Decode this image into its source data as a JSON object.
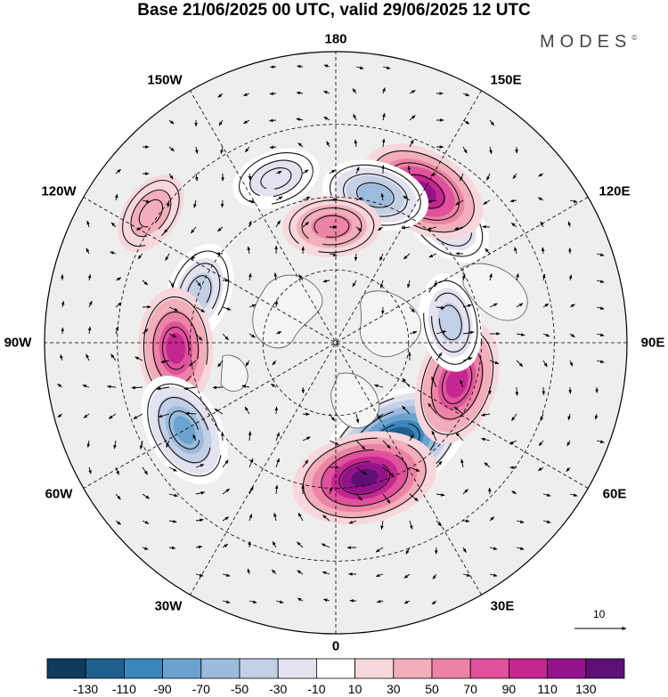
{
  "title": "Base 21/06/2025 00 UTC, valid 29/06/2025 12 UTC",
  "logo": "MODES",
  "logo_mark": "©",
  "longitude_labels": {
    "lon_180": "180",
    "lon_150e": "150E",
    "lon_120e": "120E",
    "lon_90e": "90E",
    "lon_60e": "60E",
    "lon_30e": "30E",
    "lon_0": "0",
    "lon_30w": "30W",
    "lon_60w": "60W",
    "lon_90w": "90W",
    "lon_120w": "120W",
    "lon_150w": "150W"
  },
  "reference_vector_label": "10",
  "colorbar": {
    "labels": [
      "-130",
      "-110",
      "-90",
      "-70",
      "-50",
      "-30",
      "-10",
      "10",
      "30",
      "50",
      "70",
      "90",
      "110",
      "130"
    ],
    "colors": [
      "#0e3a5e",
      "#1f5f8e",
      "#3b86bd",
      "#6aa3cf",
      "#9bbcdc",
      "#c3cfe5",
      "#e3e2ef",
      "#ffffff",
      "#f8d7dc",
      "#f2aeba",
      "#ec84a5",
      "#e0529c",
      "#c42790",
      "#93138a",
      "#5e1077"
    ]
  },
  "anomaly_centers": [
    {
      "lon": 30,
      "lat": 58,
      "value": -140,
      "sign": "negative"
    },
    {
      "lon": 12,
      "lat": 52,
      "value": 120,
      "sign": "positive"
    },
    {
      "lon": 72,
      "lat": 55,
      "value": 90,
      "sign": "positive"
    },
    {
      "lon": 100,
      "lat": 58,
      "value": -45,
      "sign": "negative"
    },
    {
      "lon": 138,
      "lat": 45,
      "value": -50,
      "sign": "negative"
    },
    {
      "lon": 150,
      "lat": 42,
      "value": 95,
      "sign": "positive"
    },
    {
      "lon": 165,
      "lat": 48,
      "value": -60,
      "sign": "negative"
    },
    {
      "lon": -178,
      "lat": 58,
      "value": 45,
      "sign": "positive"
    },
    {
      "lon": -160,
      "lat": 42,
      "value": -30,
      "sign": "negative"
    },
    {
      "lon": -125,
      "lat": 28,
      "value": 25,
      "sign": "positive"
    },
    {
      "lon": -110,
      "lat": 50,
      "value": -50,
      "sign": "negative"
    },
    {
      "lon": -88,
      "lat": 46,
      "value": 80,
      "sign": "positive"
    },
    {
      "lon": -60,
      "lat": 42,
      "value": -75,
      "sign": "negative"
    }
  ]
}
